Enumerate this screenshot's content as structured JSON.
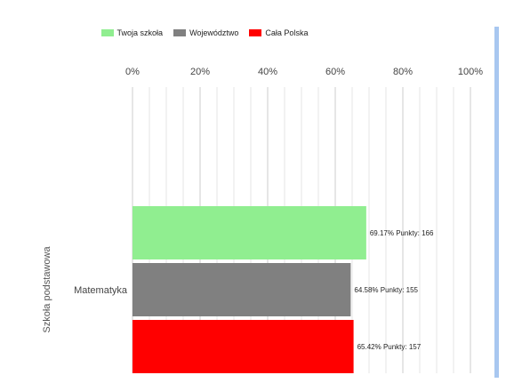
{
  "chart_data": {
    "type": "bar",
    "orientation": "horizontal",
    "group_axis_label": "Szkoła podstawowa",
    "categories": [
      "Matematyka"
    ],
    "series": [
      {
        "name": "Twoja szkoła",
        "color": "#90ee90",
        "values": [
          69.17
        ],
        "labels": [
          "69.17% Punkty: 166"
        ]
      },
      {
        "name": "Województwo",
        "color": "#808080",
        "values": [
          64.58
        ],
        "labels": [
          "64.58% Punkty: 155"
        ]
      },
      {
        "name": "Cała Polska",
        "color": "#ff0000",
        "values": [
          65.42
        ],
        "labels": [
          "65.42% Punkty: 157"
        ]
      }
    ],
    "xlim": [
      0,
      100
    ],
    "x_ticks": [
      "0%",
      "20%",
      "40%",
      "60%",
      "80%",
      "100%"
    ],
    "x_tick_values": [
      0,
      20,
      40,
      60,
      80,
      100
    ],
    "grid": true,
    "legend_position": "top"
  }
}
